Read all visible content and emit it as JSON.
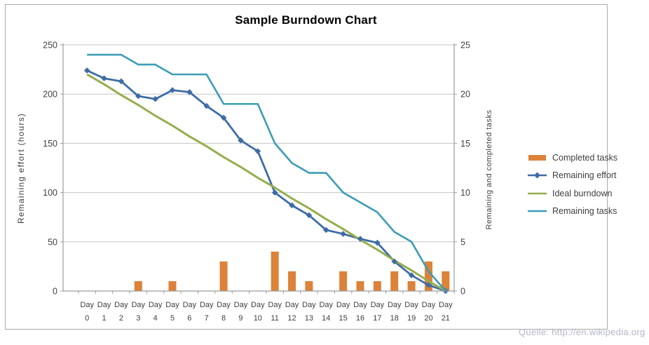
{
  "title": "Sample Burndown Chart",
  "source": "Quelle: http://en.wikipedia.org",
  "colors": {
    "gridline": "#c6c6c6",
    "axis": "#9c9c9c",
    "text": "#3f3f3f",
    "title_text": "#000000",
    "source_text": "#b3b5c9",
    "frame_border": "#a9a9a9"
  },
  "chart_data": {
    "type": "combo",
    "title": "Sample Burndown Chart",
    "x_label_prefix": "Day",
    "days": [
      0,
      1,
      2,
      3,
      4,
      5,
      6,
      7,
      8,
      9,
      10,
      11,
      12,
      13,
      14,
      15,
      16,
      17,
      18,
      19,
      20,
      21
    ],
    "left_axis": {
      "label": "Remaining effort (hours)",
      "min": 0,
      "max": 250,
      "step": 50,
      "ticks": [
        0,
        50,
        100,
        150,
        200,
        250
      ]
    },
    "right_axis": {
      "label": "Remaining and completed tasks",
      "min": 0,
      "max": 25,
      "step": 5,
      "ticks": [
        0,
        5,
        10,
        15,
        20,
        25
      ]
    },
    "grid": true,
    "legend_position": "right",
    "series": [
      {
        "name": "Completed tasks",
        "type": "bar",
        "axis": "right",
        "color": "#dc8239",
        "values": [
          0,
          0,
          0,
          1,
          0,
          1,
          0,
          0,
          3,
          0,
          0,
          4,
          2,
          1,
          0,
          2,
          1,
          1,
          2,
          1,
          3,
          2
        ]
      },
      {
        "name": "Remaining effort",
        "type": "line",
        "marker": "diamond",
        "axis": "left",
        "color": "#3e6ca5",
        "values": [
          224,
          216,
          213,
          198,
          195,
          204,
          202,
          188,
          176,
          153,
          142,
          100,
          87,
          77,
          62,
          58,
          53,
          49,
          30,
          16,
          6,
          0
        ]
      },
      {
        "name": "Ideal burndown",
        "type": "line",
        "marker": "none",
        "axis": "left",
        "color": "#94ae4d",
        "values": [
          220,
          210,
          199,
          189,
          178,
          168,
          157,
          147,
          136,
          126,
          115,
          105,
          94,
          84,
          73,
          63,
          52,
          42,
          31,
          21,
          10,
          0
        ]
      },
      {
        "name": "Remaining tasks",
        "type": "line",
        "marker": "none",
        "axis": "right",
        "color": "#3b9db4",
        "values": [
          24,
          24,
          24,
          23,
          23,
          22,
          22,
          22,
          19,
          19,
          19,
          15,
          13,
          12,
          12,
          10,
          9,
          8,
          6,
          5,
          2,
          0
        ]
      }
    ]
  }
}
